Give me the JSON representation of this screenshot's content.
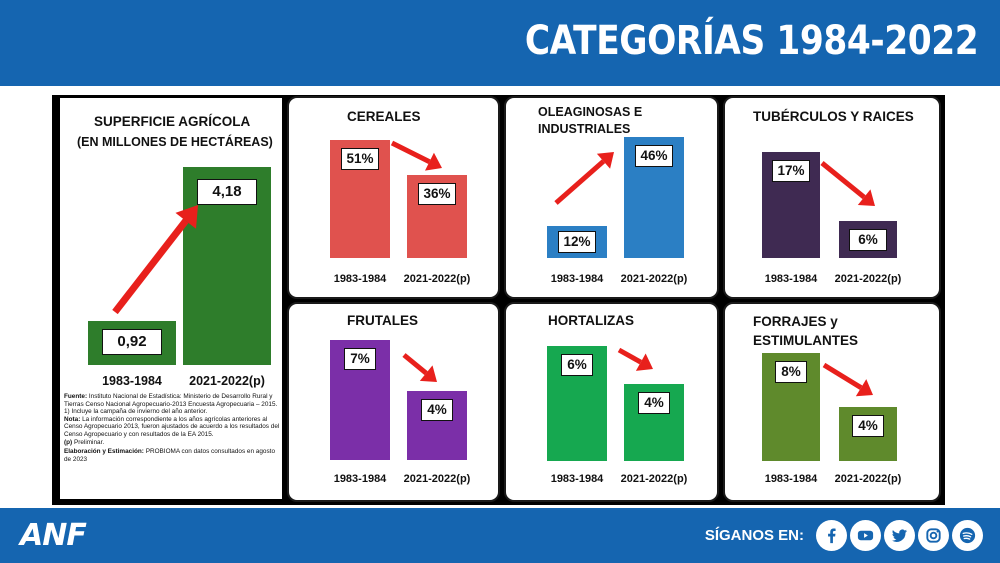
{
  "header": {
    "title": "CATEGORÍAS 1984-2022"
  },
  "footer": {
    "logo": "ANF",
    "follow_label": "SÍGANOS EN:",
    "socials": [
      "facebook-icon",
      "youtube-icon",
      "twitter-icon",
      "instagram-icon",
      "spotify-icon"
    ]
  },
  "colors": {
    "brand_blue": "#1565b0",
    "superficie": "#2e7d2b",
    "cereales": "#e0524e",
    "oleaginosas": "#2b7fc4",
    "tuberculos": "#3f2a52",
    "frutales": "#7b2fa8",
    "hortalizas": "#16a850",
    "forrajes": "#5f8a2c",
    "arrow": "#e8201c"
  },
  "main": {
    "superficie": {
      "title_line1": "SUPERFICIE AGRÍCOLA",
      "title_line2": "(EN MILLONES DE HECTÁREAS)",
      "notes": {
        "fuente_label": "Fuente:",
        "fuente_text": "Instituto Nacional de Estadística: Ministerio de Desarrollo Rural y Tierras Censo Nacional Agropecuario-2013 Encuesta Agropecuaria – 2015.",
        "note1": "1) Incluye la campaña de invierno del año anterior.",
        "nota_label": "Nota:",
        "nota_text": "La información correspondiente a los años agrícolas anteriores al Censo Agropecuario 2013, fueron ajustados de acuerdo a los resultados del Censo Agropecuario y con resultados de la EA 2015.",
        "p_label": "(p)",
        "p_text": "Preliminar.",
        "elab_label": "Elaboración y Estimación:",
        "elab_text": "PROBIOMA con datos consultados en agosto de 2023"
      }
    }
  },
  "chart_data": [
    {
      "id": "superficie",
      "type": "bar",
      "title": "SUPERFICIE AGRÍCOLA (EN MILLONES DE HECTÁREAS)",
      "categories": [
        "1983-1984",
        "2021-2022(p)"
      ],
      "values": [
        0.92,
        4.18
      ],
      "labels": [
        "0,92",
        "4,18"
      ],
      "trend": "up"
    },
    {
      "id": "cereales",
      "type": "bar",
      "title": "CEREALES",
      "categories": [
        "1983-1984",
        "2021-2022(p)"
      ],
      "values": [
        51,
        36
      ],
      "labels": [
        "51%",
        "36%"
      ],
      "trend": "down"
    },
    {
      "id": "oleaginosas",
      "type": "bar",
      "title": "OLEAGINOSAS E INDUSTRIALES",
      "categories": [
        "1983-1984",
        "2021-2022(p)"
      ],
      "values": [
        12,
        46
      ],
      "labels": [
        "12%",
        "46%"
      ],
      "trend": "up"
    },
    {
      "id": "tuberculos",
      "type": "bar",
      "title": "TUBÉRCULOS Y RAICES",
      "categories": [
        "1983-1984",
        "2021-2022(p)"
      ],
      "values": [
        17,
        6
      ],
      "labels": [
        "17%",
        "6%"
      ],
      "trend": "down"
    },
    {
      "id": "frutales",
      "type": "bar",
      "title": "FRUTALES",
      "categories": [
        "1983-1984",
        "2021-2022(p)"
      ],
      "values": [
        7,
        4
      ],
      "labels": [
        "7%",
        "4%"
      ],
      "trend": "down"
    },
    {
      "id": "hortalizas",
      "type": "bar",
      "title": "HORTALIZAS",
      "categories": [
        "1983-1984",
        "2021-2022(p)"
      ],
      "values": [
        6,
        4
      ],
      "labels": [
        "6%",
        "4%"
      ],
      "trend": "down"
    },
    {
      "id": "forrajes",
      "type": "bar",
      "title": "FORRAJES y ESTIMULANTES",
      "categories": [
        "1983-1984",
        "2021-2022(p)"
      ],
      "values": [
        8,
        4
      ],
      "labels": [
        "8%",
        "4%"
      ],
      "trend": "down"
    }
  ]
}
